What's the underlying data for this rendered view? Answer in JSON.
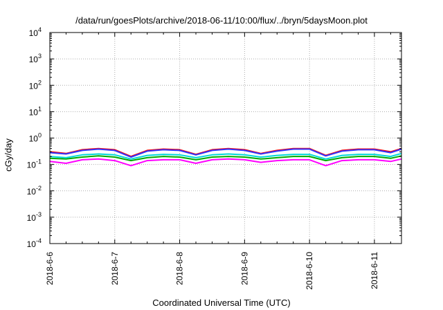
{
  "chart_data": {
    "type": "line",
    "title": "/data/run/goesPlots/archive/2018-06-11/10:00/flux/../bryn/5daysMoon.plot",
    "xlabel": "Coordinated Universal Time (UTC)",
    "ylabel": "cGy/day",
    "yscale": "log",
    "ylim": [
      0.0001,
      10000
    ],
    "xlim": [
      "2018-06-06",
      "2018-06-11 10:00"
    ],
    "grid": true,
    "x_ticks": [
      "2018-6-6",
      "2018-6-7",
      "2018-6-8",
      "2018-6-9",
      "2018-6-10",
      "2018-6-11"
    ],
    "y_ticks": [
      {
        "base": "10",
        "exp": "-4"
      },
      {
        "base": "10",
        "exp": "-3"
      },
      {
        "base": "10",
        "exp": "-2"
      },
      {
        "base": "10",
        "exp": "-1"
      },
      {
        "base": "10",
        "exp": "0"
      },
      {
        "base": "10",
        "exp": "1"
      },
      {
        "base": "10",
        "exp": "2"
      },
      {
        "base": "10",
        "exp": "3"
      },
      {
        "base": "10",
        "exp": "4"
      }
    ],
    "x": [
      "2018-06-06 00:00",
      "2018-06-06 06:00",
      "2018-06-06 12:00",
      "2018-06-06 18:00",
      "2018-06-07 00:00",
      "2018-06-07 06:00",
      "2018-06-07 12:00",
      "2018-06-07 18:00",
      "2018-06-08 00:00",
      "2018-06-08 06:00",
      "2018-06-08 12:00",
      "2018-06-08 18:00",
      "2018-06-09 00:00",
      "2018-06-09 06:00",
      "2018-06-09 12:00",
      "2018-06-09 18:00",
      "2018-06-10 00:00",
      "2018-06-10 06:00",
      "2018-06-10 12:00",
      "2018-06-10 18:00",
      "2018-06-11 00:00",
      "2018-06-11 06:00",
      "2018-06-11 10:00"
    ],
    "series": [
      {
        "color": "#ff00ff",
        "values": [
          0.13,
          0.11,
          0.15,
          0.16,
          0.14,
          0.09,
          0.14,
          0.15,
          0.15,
          0.11,
          0.15,
          0.16,
          0.15,
          0.12,
          0.14,
          0.15,
          0.15,
          0.09,
          0.14,
          0.15,
          0.15,
          0.13,
          0.16
        ]
      },
      {
        "color": "#00aa00",
        "values": [
          0.17,
          0.16,
          0.19,
          0.21,
          0.19,
          0.14,
          0.18,
          0.2,
          0.19,
          0.15,
          0.19,
          0.2,
          0.19,
          0.16,
          0.18,
          0.2,
          0.2,
          0.14,
          0.18,
          0.2,
          0.2,
          0.17,
          0.21
        ]
      },
      {
        "color": "#00d8d8",
        "values": [
          0.2,
          0.18,
          0.23,
          0.25,
          0.23,
          0.16,
          0.22,
          0.24,
          0.23,
          0.18,
          0.23,
          0.25,
          0.23,
          0.19,
          0.22,
          0.24,
          0.24,
          0.16,
          0.22,
          0.24,
          0.24,
          0.2,
          0.26
        ]
      },
      {
        "color": "#ff0000",
        "values": [
          0.3,
          0.26,
          0.36,
          0.4,
          0.36,
          0.2,
          0.34,
          0.38,
          0.36,
          0.24,
          0.36,
          0.4,
          0.36,
          0.26,
          0.34,
          0.4,
          0.4,
          0.22,
          0.34,
          0.38,
          0.38,
          0.3,
          0.4
        ]
      },
      {
        "color": "#3333ff",
        "values": [
          0.28,
          0.25,
          0.34,
          0.38,
          0.34,
          0.19,
          0.32,
          0.36,
          0.34,
          0.23,
          0.34,
          0.38,
          0.34,
          0.25,
          0.32,
          0.38,
          0.38,
          0.21,
          0.32,
          0.36,
          0.36,
          0.28,
          0.38
        ]
      }
    ]
  }
}
